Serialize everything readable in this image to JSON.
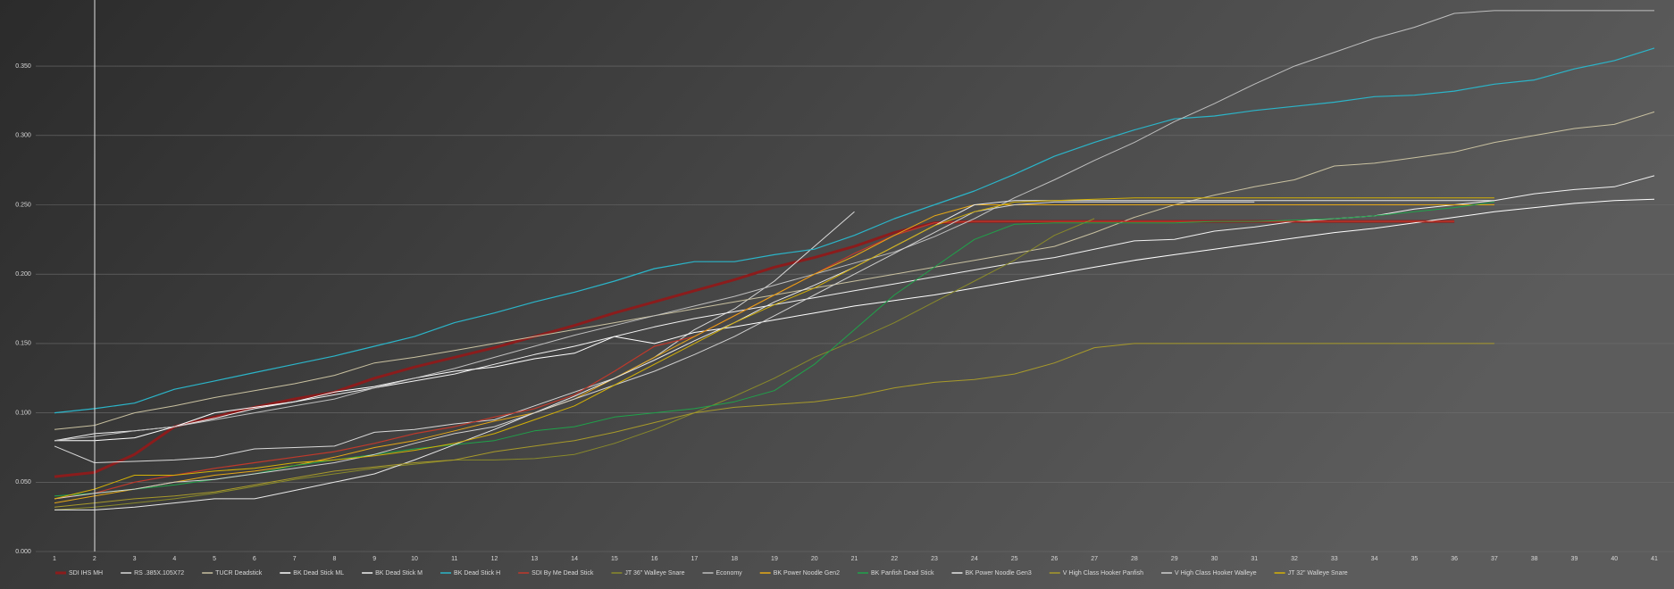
{
  "chart_data": {
    "type": "line",
    "categories": [
      "1",
      "2",
      "3",
      "4",
      "5",
      "6",
      "7",
      "8",
      "9",
      "10",
      "11",
      "12",
      "13",
      "14",
      "15",
      "16",
      "17",
      "18",
      "19",
      "20",
      "21",
      "22",
      "23",
      "24",
      "25",
      "26",
      "27",
      "28",
      "29",
      "30",
      "31",
      "32",
      "33",
      "34",
      "35",
      "36",
      "37",
      "38",
      "39",
      "40",
      "41"
    ],
    "ylim": [
      0,
      0.4
    ],
    "yticks": [
      {
        "value": 0,
        "label": "0.000"
      },
      {
        "value": 0.05,
        "label": "0.050"
      },
      {
        "value": 0.1,
        "label": "0.100"
      },
      {
        "value": 0.15,
        "label": "0.150"
      },
      {
        "value": 0.2,
        "label": "0.200"
      },
      {
        "value": 0.25,
        "label": "0.250"
      },
      {
        "value": 0.3,
        "label": "0.300"
      },
      {
        "value": 0.35,
        "label": "0.350"
      }
    ],
    "grid": true,
    "legend": "bottom",
    "series": [
      {
        "name": "SDI IHS MH",
        "color": "#8b1c1c",
        "width": 3,
        "values": [
          0.054,
          0.057,
          0.07,
          0.09,
          0.097,
          0.104,
          0.11,
          0.115,
          0.125,
          0.133,
          0.14,
          0.147,
          0.155,
          0.163,
          0.172,
          0.18,
          0.188,
          0.196,
          0.205,
          0.212,
          0.22,
          0.23,
          0.237,
          0.238,
          0.238,
          0.238,
          0.238,
          0.238,
          0.238,
          0.238,
          0.238,
          0.238,
          0.238,
          0.238,
          0.238,
          0.238,
          null,
          null,
          null,
          null,
          null
        ]
      },
      {
        "name": "RS .385X.105X72",
        "color": "#d9d9d9",
        "width": 1,
        "values": [
          0.076,
          0.064,
          0.065,
          0.066,
          0.068,
          0.074,
          0.075,
          0.076,
          0.086,
          0.088,
          0.092,
          0.095,
          0.105,
          0.115,
          0.125,
          0.14,
          0.16,
          0.175,
          0.195,
          0.22,
          0.245,
          null,
          null,
          null,
          null,
          null,
          null,
          null,
          null,
          null,
          null,
          null,
          null,
          null,
          null,
          null,
          null,
          null,
          null,
          null,
          null
        ]
      },
      {
        "name": "TUCR Deadstick",
        "color": "#c9c1a0",
        "width": 1,
        "values": [
          0.088,
          0.091,
          0.1,
          0.105,
          0.111,
          0.116,
          0.121,
          0.127,
          0.136,
          0.14,
          0.145,
          0.15,
          0.155,
          0.16,
          0.165,
          0.17,
          0.175,
          0.18,
          0.185,
          0.19,
          0.195,
          0.2,
          0.205,
          0.21,
          0.215,
          0.22,
          0.23,
          0.241,
          0.25,
          0.257,
          0.263,
          0.268,
          0.278,
          0.28,
          0.284,
          0.288,
          0.295,
          0.3,
          0.305,
          0.308,
          0.317
        ]
      },
      {
        "name": "BK Dead Stick ML",
        "color": "#ffffff",
        "width": 1,
        "values": [
          0.08,
          0.08,
          0.082,
          0.09,
          0.1,
          0.104,
          0.108,
          0.115,
          0.119,
          0.125,
          0.13,
          0.133,
          0.139,
          0.143,
          0.155,
          0.15,
          0.158,
          0.162,
          0.167,
          0.172,
          0.177,
          0.181,
          0.185,
          0.19,
          0.195,
          0.2,
          0.205,
          0.21,
          0.214,
          0.218,
          0.222,
          0.226,
          0.23,
          0.233,
          0.237,
          0.241,
          0.245,
          0.248,
          0.251,
          0.253,
          0.254
        ]
      },
      {
        "name": "BK Dead Stick M",
        "color": "#f2f2f2",
        "width": 1,
        "values": [
          0.08,
          0.085,
          0.087,
          0.09,
          0.096,
          0.103,
          0.108,
          0.113,
          0.118,
          0.123,
          0.128,
          0.135,
          0.142,
          0.148,
          0.155,
          0.162,
          0.168,
          0.173,
          0.178,
          0.183,
          0.188,
          0.193,
          0.198,
          0.203,
          0.208,
          0.212,
          0.218,
          0.224,
          0.225,
          0.231,
          0.234,
          0.238,
          0.24,
          0.242,
          0.247,
          0.25,
          0.253,
          0.258,
          0.261,
          0.263,
          0.271
        ]
      },
      {
        "name": "BK Dead Stick H",
        "color": "#2bb5c9",
        "width": 1.2,
        "values": [
          0.1,
          0.103,
          0.107,
          0.117,
          0.123,
          0.129,
          0.135,
          0.141,
          0.148,
          0.155,
          0.165,
          0.172,
          0.18,
          0.187,
          0.195,
          0.204,
          0.209,
          0.209,
          0.214,
          0.218,
          0.228,
          0.24,
          0.25,
          0.26,
          0.272,
          0.285,
          0.295,
          0.304,
          0.312,
          0.314,
          0.318,
          0.321,
          0.324,
          0.328,
          0.329,
          0.332,
          0.337,
          0.34,
          0.348,
          0.354,
          0.363
        ]
      },
      {
        "name": "SDI By Me Dead Stick",
        "color": "#c0392b",
        "width": 1.2,
        "values": [
          0.038,
          0.042,
          0.05,
          0.055,
          0.06,
          0.064,
          0.068,
          0.072,
          0.078,
          0.085,
          0.09,
          0.097,
          0.103,
          0.113,
          0.13,
          0.148,
          0.155,
          0.17,
          0.185,
          0.2,
          0.215,
          0.228,
          0.237,
          0.238,
          0.238,
          0.238,
          0.238,
          0.238,
          0.238,
          0.238,
          0.238,
          0.238,
          0.238,
          0.238,
          0.238,
          0.238,
          null,
          null,
          null,
          null,
          null
        ]
      },
      {
        "name": "JT 36\" Walleye Snare",
        "color": "#8a8a2a",
        "width": 1,
        "values": [
          0.03,
          0.032,
          0.035,
          0.038,
          0.042,
          0.047,
          0.052,
          0.056,
          0.06,
          0.063,
          0.066,
          0.066,
          0.067,
          0.07,
          0.078,
          0.088,
          0.1,
          0.112,
          0.125,
          0.14,
          0.152,
          0.165,
          0.18,
          0.195,
          0.21,
          0.228,
          0.24,
          null,
          null,
          null,
          null,
          null,
          null,
          null,
          null,
          null,
          null,
          null,
          null,
          null,
          null
        ]
      },
      {
        "name": "Economy",
        "color": "#bfbfbf",
        "width": 1,
        "values": [
          0.08,
          0.083,
          0.087,
          0.09,
          0.095,
          0.1,
          0.105,
          0.11,
          0.118,
          0.125,
          0.132,
          0.14,
          0.148,
          0.156,
          0.163,
          0.17,
          0.177,
          0.184,
          0.192,
          0.2,
          0.208,
          0.216,
          0.227,
          0.24,
          0.255,
          0.268,
          0.282,
          0.295,
          0.31,
          0.323,
          0.337,
          0.35,
          0.36,
          0.37,
          0.378,
          0.388,
          0.39,
          0.39,
          0.39,
          0.39,
          0.39
        ]
      },
      {
        "name": "BK Power Noodle Gen2",
        "color": "#e6a817",
        "width": 1,
        "values": [
          0.035,
          0.04,
          0.045,
          0.05,
          0.055,
          0.058,
          0.062,
          0.068,
          0.075,
          0.08,
          0.087,
          0.094,
          0.1,
          0.11,
          0.125,
          0.14,
          0.155,
          0.17,
          0.185,
          0.2,
          0.213,
          0.228,
          0.242,
          0.25,
          0.25,
          0.25,
          0.25,
          0.25,
          0.25,
          0.25,
          0.25,
          0.25,
          0.25,
          0.25,
          0.25,
          0.25,
          0.25,
          null,
          null,
          null,
          null
        ]
      },
      {
        "name": "BK Panfish Dead Stick",
        "color": "#1fa34a",
        "width": 1,
        "values": [
          0.04,
          0.042,
          0.045,
          0.048,
          0.052,
          0.056,
          0.062,
          0.066,
          0.07,
          0.074,
          0.077,
          0.08,
          0.087,
          0.09,
          0.097,
          0.1,
          0.103,
          0.108,
          0.116,
          0.135,
          0.16,
          0.185,
          0.205,
          0.225,
          0.236,
          0.237,
          0.237,
          0.237,
          0.237,
          0.238,
          0.238,
          0.239,
          0.24,
          0.242,
          0.245,
          0.248,
          0.252,
          null,
          null,
          null,
          null
        ]
      },
      {
        "name": "BK Power Noodle Gen3",
        "color": "#e8e8e8",
        "width": 1,
        "values": [
          0.03,
          0.03,
          0.032,
          0.035,
          0.038,
          0.038,
          0.044,
          0.05,
          0.056,
          0.066,
          0.077,
          0.088,
          0.1,
          0.112,
          0.125,
          0.138,
          0.152,
          0.165,
          0.18,
          0.192,
          0.205,
          0.22,
          0.235,
          0.25,
          0.253,
          0.253,
          0.253,
          0.253,
          0.253,
          0.253,
          0.253,
          0.253,
          0.253,
          0.253,
          0.253,
          0.253,
          0.253,
          null,
          null,
          null,
          null
        ]
      },
      {
        "name": "V High Class Hooker Panfish",
        "color": "#a89a2a",
        "width": 1,
        "values": [
          0.032,
          0.035,
          0.038,
          0.04,
          0.043,
          0.048,
          0.053,
          0.058,
          0.061,
          0.064,
          0.066,
          0.072,
          0.076,
          0.08,
          0.086,
          0.093,
          0.1,
          0.104,
          0.106,
          0.108,
          0.112,
          0.118,
          0.122,
          0.124,
          0.128,
          0.136,
          0.147,
          0.15,
          0.15,
          0.15,
          0.15,
          0.15,
          0.15,
          0.15,
          0.15,
          0.15,
          0.15,
          null,
          null,
          null,
          null
        ]
      },
      {
        "name": "V High Class Hooker Walleye",
        "color": "#d0d0d0",
        "width": 1,
        "values": [
          0.038,
          0.042,
          0.045,
          0.05,
          0.052,
          0.056,
          0.06,
          0.064,
          0.07,
          0.078,
          0.085,
          0.09,
          0.1,
          0.11,
          0.12,
          0.13,
          0.142,
          0.155,
          0.17,
          0.185,
          0.2,
          0.215,
          0.23,
          0.245,
          0.25,
          0.252,
          0.252,
          0.252,
          0.252,
          0.252,
          0.252,
          null,
          null,
          null,
          null,
          null,
          null,
          null,
          null,
          null,
          null
        ]
      },
      {
        "name": "JT 32\" Walleye Snare",
        "color": "#d4b106",
        "width": 1,
        "values": [
          0.038,
          0.045,
          0.055,
          0.055,
          0.058,
          0.06,
          0.064,
          0.066,
          0.069,
          0.073,
          0.078,
          0.085,
          0.095,
          0.105,
          0.12,
          0.135,
          0.15,
          0.165,
          0.178,
          0.19,
          0.205,
          0.22,
          0.235,
          0.245,
          0.252,
          0.253,
          0.254,
          0.255,
          0.255,
          0.255,
          0.255,
          0.255,
          0.255,
          0.255,
          0.255,
          0.255,
          0.255,
          null,
          null,
          null,
          null
        ]
      }
    ]
  }
}
